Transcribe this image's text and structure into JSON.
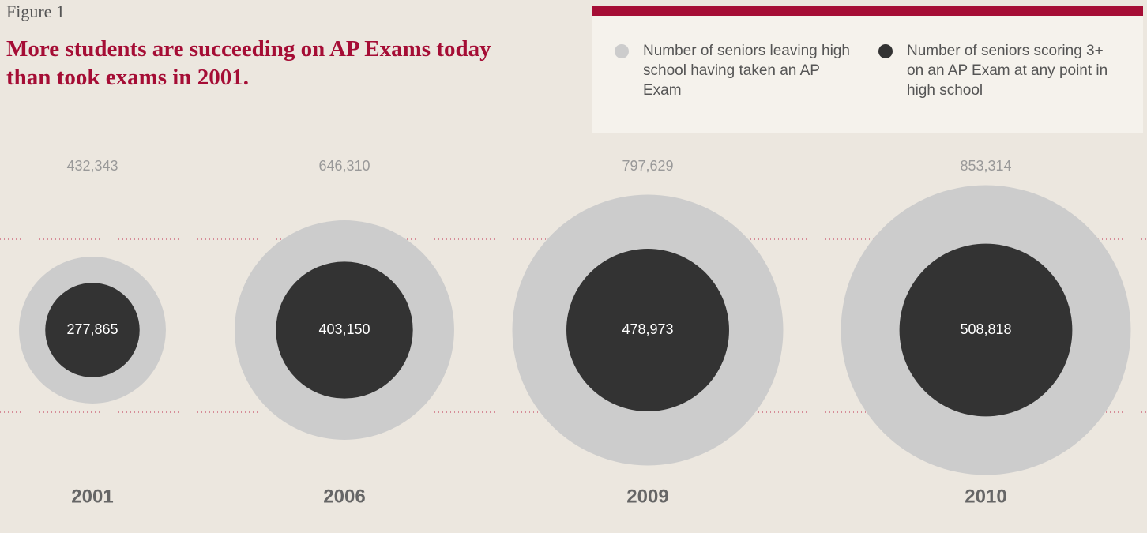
{
  "chart_data": {
    "type": "bubble",
    "figure_label": "Figure 1",
    "title": "More students are succeeding on AP Exams today than took exams in 2001.",
    "categories": [
      "2001",
      "2006",
      "2009",
      "2010"
    ],
    "series": [
      {
        "name": "Number of seniors leaving high school having taken an AP Exam",
        "color": "#cccccc",
        "values": [
          432343,
          646310,
          797629,
          853314
        ],
        "value_labels": [
          "432,343",
          "646,310",
          "797,629",
          "853,314"
        ]
      },
      {
        "name": "Number of seniors scoring 3+ on an AP Exam at any point in high school",
        "color": "#333333",
        "values": [
          277865,
          403150,
          478973,
          508818
        ],
        "value_labels": [
          "277,865",
          "403,150",
          "478,973",
          "508,818"
        ]
      }
    ]
  }
}
